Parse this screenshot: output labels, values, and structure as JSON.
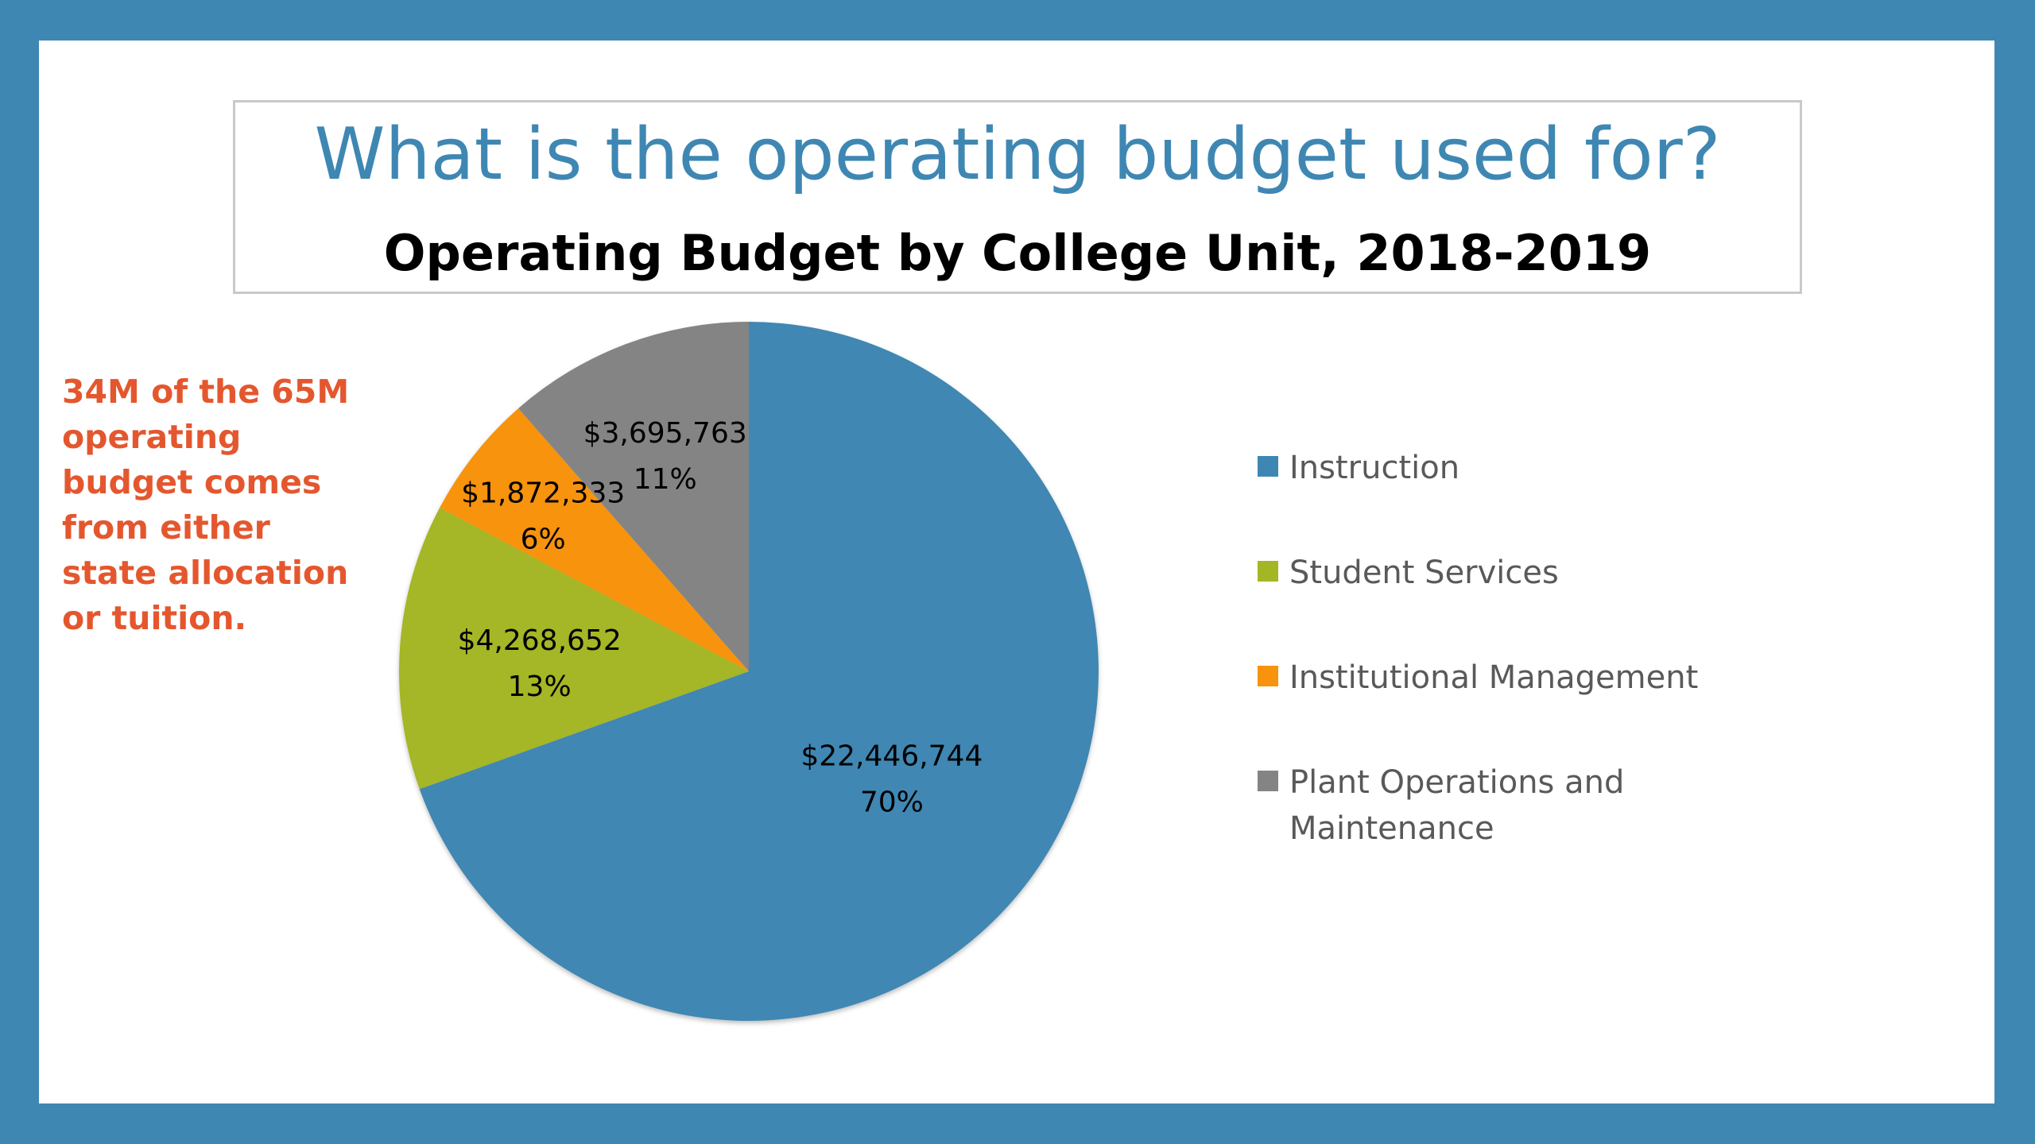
{
  "slide": {
    "title": "What is the operating budget used for?",
    "callout_lines": [
      "34M of the 65M",
      "operating",
      "budget comes",
      "from either",
      "state allocation",
      "or tuition."
    ],
    "callout_color": "#e4572e",
    "background_color": "#3f87b3"
  },
  "chart_data": {
    "type": "pie",
    "title": "Operating Budget by College Unit, 2018-2019",
    "legend_position": "right",
    "slices": [
      {
        "name": "Instruction",
        "value": 22446744,
        "value_label": "$22,446,744",
        "percent_label": "70%",
        "color": "#3f87b3"
      },
      {
        "name": "Student Services",
        "value": 4268652,
        "value_label": "$4,268,652",
        "percent_label": "13%",
        "color": "#a5b625"
      },
      {
        "name": "Institutional Management",
        "value": 1872333,
        "value_label": "$1,872,333",
        "percent_label": "6%",
        "color": "#f7930c"
      },
      {
        "name": "Plant Operations and Maintenance",
        "value": 3695763,
        "value_label": "$3,695,763",
        "percent_label": "11%",
        "color": "#848484"
      }
    ]
  }
}
